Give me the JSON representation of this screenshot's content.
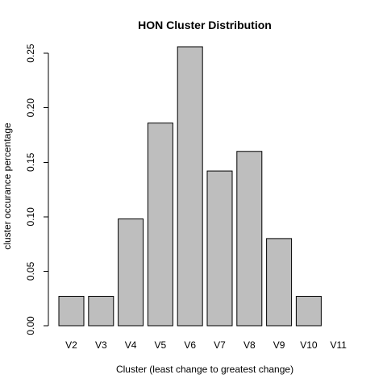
{
  "chart_data": {
    "type": "bar",
    "title": "HON Cluster Distribution",
    "xlabel": "Cluster (least change to greatest change)",
    "ylabel": "cluster occurance percentage",
    "categories": [
      "V2",
      "V3",
      "V4",
      "V5",
      "V6",
      "V7",
      "V8",
      "V9",
      "V10",
      "V11"
    ],
    "values": [
      0.027,
      0.027,
      0.098,
      0.186,
      0.256,
      0.142,
      0.16,
      0.08,
      0.027,
      0.0
    ],
    "yticks": [
      0.0,
      0.05,
      0.1,
      0.15,
      0.2,
      0.25
    ],
    "ytick_labels": [
      "0.00",
      "0.05",
      "0.10",
      "0.15",
      "0.20",
      "0.25"
    ],
    "ylim": [
      0,
      0.256
    ],
    "grid": false,
    "colors": {
      "bar_fill": "#bebebe",
      "bar_stroke": "#000000"
    }
  }
}
